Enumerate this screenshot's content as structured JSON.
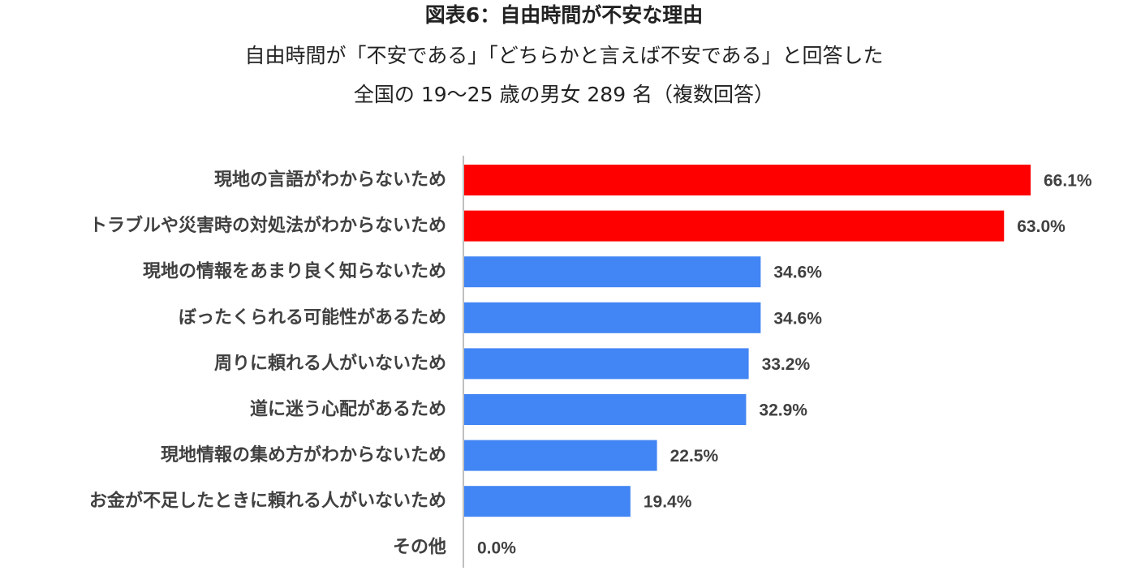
{
  "title": "図表6：自由時間が不安な理由",
  "subtitle_line1": "自由時間が「不安である」「どちらかと言えば不安である」と回答した",
  "subtitle_line2": "全国の 19〜25 歳の男女 289 名（複数回答）",
  "colors": {
    "highlight": "#ff0000",
    "normal": "#4285f4",
    "axis": "#bfbfbf"
  },
  "chart_data": {
    "type": "bar",
    "orientation": "horizontal",
    "categories": [
      "現地の言語がわからないため",
      "トラブルや災害時の対処法がわからないため",
      "現地の情報をあまり良く知らないため",
      "ぼったくられる可能性があるため",
      "周りに頼れる人がいないため",
      "道に迷う心配があるため",
      "現地情報の集め方がわからないため",
      "お金が不足したときに頼れる人がいないため",
      "その他"
    ],
    "values": [
      66.1,
      63.0,
      34.6,
      34.6,
      33.2,
      32.9,
      22.5,
      19.4,
      0.0
    ],
    "labels": [
      "66.1%",
      "63.0%",
      "34.6%",
      "34.6%",
      "33.2%",
      "32.9%",
      "22.5%",
      "19.4%",
      "0.0%"
    ],
    "highlighted": [
      true,
      true,
      false,
      false,
      false,
      false,
      false,
      false,
      false
    ],
    "unit": "%",
    "xlim": [
      0,
      66.1
    ],
    "grid": false,
    "legend": "none"
  }
}
